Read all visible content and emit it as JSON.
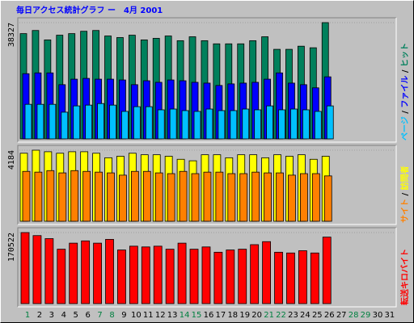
{
  "chart_data": [
    {
      "type": "bar",
      "title": "毎日アクセス統計グラフ ー　4月 2001",
      "title_color": "#0000ff",
      "categories": [
        "1",
        "2",
        "3",
        "4",
        "5",
        "6",
        "7",
        "8",
        "9",
        "10",
        "11",
        "12",
        "13",
        "14",
        "15",
        "16",
        "17",
        "18",
        "19",
        "20",
        "21",
        "22",
        "23",
        "24",
        "25",
        "26",
        "27",
        "28",
        "29",
        "30",
        "31"
      ],
      "category_colors": [
        "#008040",
        "#000000",
        "#000000",
        "#000000",
        "#000000",
        "#000000",
        "#008040",
        "#008040",
        "#000000",
        "#000000",
        "#000000",
        "#000000",
        "#000000",
        "#008040",
        "#008040",
        "#000000",
        "#000000",
        "#000000",
        "#000000",
        "#000000",
        "#008040",
        "#008040",
        "#000000",
        "#000000",
        "#000000",
        "#000000",
        "#000000",
        "#008040",
        "#008040",
        "#000000",
        "#000000"
      ],
      "ylim": [
        0,
        38327
      ],
      "yticks": [
        38327
      ],
      "legend_separator": " / ",
      "series": [
        {
          "name": "ヒット",
          "color": "#00805c",
          "values": [
            34702,
            35737,
            32630,
            34184,
            34702,
            35478,
            35737,
            33925,
            33407,
            34184,
            32630,
            33148,
            33925,
            32371,
            33666,
            32371,
            31335,
            31335,
            31335,
            32371,
            33666,
            29522,
            29522,
            30558,
            30040,
            38327,
            null,
            null,
            null,
            null,
            null
          ]
        },
        {
          "name": "ファイル",
          "color": "#0000ff",
          "values": [
            21495,
            21753,
            21753,
            17869,
            19682,
            19941,
            19682,
            19682,
            19423,
            17869,
            19164,
            18646,
            19423,
            19164,
            18646,
            18387,
            17610,
            18128,
            18387,
            18646,
            19682,
            21753,
            18387,
            17869,
            16833,
            20459,
            null,
            null,
            null,
            null,
            null
          ]
        },
        {
          "name": "ページ",
          "color": "#00c0ff",
          "values": [
            11395,
            11395,
            11395,
            8805,
            10877,
            11136,
            11654,
            11136,
            9064,
            10618,
            10618,
            9582,
            9841,
            9323,
            9064,
            9841,
            9323,
            9323,
            9841,
            9582,
            10877,
            9582,
            9841,
            9582,
            9064,
            10877,
            null,
            null,
            null,
            null,
            null
          ]
        }
      ]
    },
    {
      "type": "bar",
      "ylim": [
        0,
        4184
      ],
      "yticks": [
        4184
      ],
      "legend_separator": " / ",
      "series": [
        {
          "name": "訪問者",
          "color": "#ffff00",
          "values": [
            4005,
            4184,
            4094,
            4005,
            4094,
            4094,
            4005,
            3738,
            3827,
            4005,
            3916,
            3916,
            3827,
            3649,
            3560,
            3916,
            3916,
            3738,
            3916,
            3916,
            3738,
            3916,
            3827,
            3916,
            3649,
            3827,
            null,
            null,
            null,
            null,
            null
          ]
        },
        {
          "name": "サイト",
          "color": "#ff8000",
          "values": [
            2937,
            2893,
            2982,
            2848,
            2982,
            2937,
            2893,
            2848,
            2715,
            2937,
            2937,
            2848,
            2804,
            2937,
            2804,
            2893,
            2893,
            2804,
            2804,
            2893,
            2848,
            2848,
            2715,
            2804,
            2804,
            2670,
            null,
            null,
            null,
            null,
            null
          ]
        }
      ]
    },
    {
      "type": "bar",
      "ylim": [
        0,
        170522
      ],
      "yticks": [
        170522
      ],
      "series": [
        {
          "name": "転送キロバイト",
          "color": "#ff0000",
          "values": [
            170522,
            163260,
            156004,
            130608,
            145120,
            150562,
            145120,
            154190,
            128794,
            137864,
            136050,
            137864,
            130608,
            145120,
            130608,
            136050,
            123352,
            128794,
            130608,
            141492,
            148748,
            123352,
            121538,
            126980,
            121538,
            159632,
            null,
            null,
            null,
            null,
            null
          ]
        }
      ]
    }
  ]
}
